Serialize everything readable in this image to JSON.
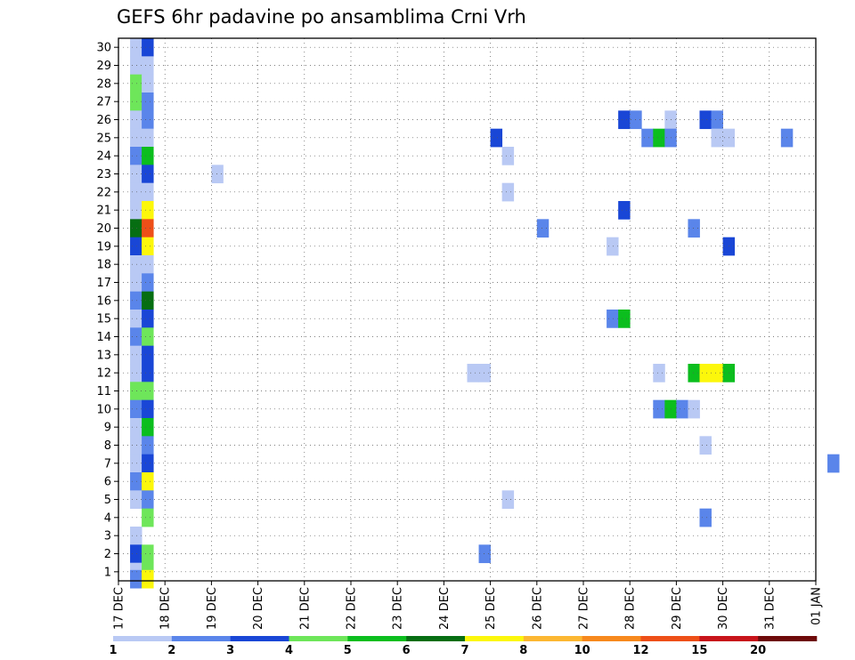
{
  "chart_data": {
    "type": "heatmap",
    "title": "GEFS 6hr padavine po ansamblima Crni Vrh",
    "xlabel": "",
    "ylabel": "",
    "x_ticks": [
      "17 DEC",
      "18 DEC",
      "19 DEC",
      "20 DEC",
      "21 DEC",
      "22 DEC",
      "23 DEC",
      "24 DEC",
      "25 DEC",
      "26 DEC",
      "27 DEC",
      "28 DEC",
      "29 DEC",
      "30 DEC",
      "31 DEC",
      "01 JAN"
    ],
    "xlim": [
      0,
      15
    ],
    "time_step_hours": 6,
    "y_ticks": [
      "1",
      "2",
      "3",
      "4",
      "5",
      "6",
      "7",
      "8",
      "9",
      "10",
      "11",
      "12",
      "13",
      "14",
      "15",
      "16",
      "17",
      "18",
      "19",
      "20",
      "21",
      "22",
      "23",
      "24",
      "25",
      "26",
      "27",
      "28",
      "29",
      "30"
    ],
    "ylim": [
      0.5,
      30.5
    ],
    "grid": true,
    "colorbar": {
      "position": "bottom",
      "labels": [
        "1",
        "2",
        "3",
        "4",
        "5",
        "6",
        "7",
        "8",
        "10",
        "12",
        "15",
        "20"
      ],
      "colors": [
        "#b9c9f4",
        "#5a85ea",
        "#1946d6",
        "#6ee65a",
        "#0bbe1e",
        "#066e12",
        "#fcf70b",
        "#fcb732",
        "#f7891d",
        "#ee4f18",
        "#c8141a",
        "#6e0a0a"
      ]
    },
    "cells": [
      {
        "member": 30,
        "day": 0.25,
        "value": 1.5
      },
      {
        "member": 30,
        "day": 0.5,
        "value": 3.5
      },
      {
        "member": 29,
        "day": 0.25,
        "value": 1.5
      },
      {
        "member": 29,
        "day": 0.5,
        "value": 1.5
      },
      {
        "member": 28,
        "day": 0.25,
        "value": 4.5
      },
      {
        "member": 28,
        "day": 0.5,
        "value": 1.5
      },
      {
        "member": 27,
        "day": 0.25,
        "value": 4.5
      },
      {
        "member": 27,
        "day": 0.5,
        "value": 2.5
      },
      {
        "member": 26,
        "day": 0.25,
        "value": 1.5
      },
      {
        "member": 26,
        "day": 0.5,
        "value": 2.5
      },
      {
        "member": 25,
        "day": 0.25,
        "value": 1.5
      },
      {
        "member": 25,
        "day": 0.5,
        "value": 1.5
      },
      {
        "member": 24,
        "day": 0.25,
        "value": 2.5
      },
      {
        "member": 24,
        "day": 0.5,
        "value": 5.5
      },
      {
        "member": 23,
        "day": 0.25,
        "value": 1.5
      },
      {
        "member": 23,
        "day": 0.5,
        "value": 3.5
      },
      {
        "member": 22,
        "day": 0.25,
        "value": 1.5
      },
      {
        "member": 22,
        "day": 0.5,
        "value": 1.5
      },
      {
        "member": 21,
        "day": 0.25,
        "value": 1.5
      },
      {
        "member": 21,
        "day": 0.5,
        "value": 7.5
      },
      {
        "member": 20,
        "day": 0.25,
        "value": 6.5
      },
      {
        "member": 20,
        "day": 0.5,
        "value": 13.5
      },
      {
        "member": 19,
        "day": 0.25,
        "value": 3.5
      },
      {
        "member": 19,
        "day": 0.5,
        "value": 7.5
      },
      {
        "member": 18,
        "day": 0.25,
        "value": 1.5
      },
      {
        "member": 18,
        "day": 0.5,
        "value": 1.5
      },
      {
        "member": 17,
        "day": 0.25,
        "value": 1.5
      },
      {
        "member": 17,
        "day": 0.5,
        "value": 2.5
      },
      {
        "member": 16,
        "day": 0.25,
        "value": 2.5
      },
      {
        "member": 16,
        "day": 0.5,
        "value": 6.5
      },
      {
        "member": 15,
        "day": 0.25,
        "value": 1.5
      },
      {
        "member": 15,
        "day": 0.5,
        "value": 3.5
      },
      {
        "member": 14,
        "day": 0.25,
        "value": 2.5
      },
      {
        "member": 14,
        "day": 0.5,
        "value": 4.5
      },
      {
        "member": 13,
        "day": 0.25,
        "value": 1.5
      },
      {
        "member": 13,
        "day": 0.5,
        "value": 3.5
      },
      {
        "member": 12,
        "day": 0.25,
        "value": 1.5
      },
      {
        "member": 12,
        "day": 0.5,
        "value": 3.5
      },
      {
        "member": 11,
        "day": 0.25,
        "value": 4.5
      },
      {
        "member": 11,
        "day": 0.5,
        "value": 4.5
      },
      {
        "member": 10,
        "day": 0.25,
        "value": 2.5
      },
      {
        "member": 10,
        "day": 0.5,
        "value": 3.5
      },
      {
        "member": 9,
        "day": 0.25,
        "value": 1.5
      },
      {
        "member": 9,
        "day": 0.5,
        "value": 5.5
      },
      {
        "member": 8,
        "day": 0.25,
        "value": 1.5
      },
      {
        "member": 8,
        "day": 0.5,
        "value": 2.5
      },
      {
        "member": 7,
        "day": 0.25,
        "value": 1.5
      },
      {
        "member": 7,
        "day": 0.5,
        "value": 3.5
      },
      {
        "member": 6,
        "day": 0.25,
        "value": 2.5
      },
      {
        "member": 6,
        "day": 0.5,
        "value": 7.5
      },
      {
        "member": 5,
        "day": 0.25,
        "value": 1.5
      },
      {
        "member": 5,
        "day": 0.5,
        "value": 2.5
      },
      {
        "member": 4,
        "day": 0.5,
        "value": 4.5
      },
      {
        "member": 3,
        "day": 0.25,
        "value": 1.5
      },
      {
        "member": 2,
        "day": 0.25,
        "value": 3.5
      },
      {
        "member": 2,
        "day": 0.5,
        "value": 4.5
      },
      {
        "member": 1,
        "day": 0.25,
        "value": 1.5
      },
      {
        "member": 1,
        "day": 0.5,
        "value": 4.5
      },
      {
        "member": 0.6,
        "day": 0.25,
        "value": 2.5
      },
      {
        "member": 0.6,
        "day": 0.5,
        "value": 7.5
      },
      {
        "member": 26,
        "day": 10.75,
        "value": 3.5
      },
      {
        "member": 26,
        "day": 11.0,
        "value": 2.5
      },
      {
        "member": 26,
        "day": 11.75,
        "value": 1.5
      },
      {
        "member": 26,
        "day": 12.5,
        "value": 3.5
      },
      {
        "member": 26,
        "day": 12.75,
        "value": 2.5
      },
      {
        "member": 25,
        "day": 8.0,
        "value": 3.5
      },
      {
        "member": 25,
        "day": 11.25,
        "value": 2.5
      },
      {
        "member": 25,
        "day": 11.5,
        "value": 5.5
      },
      {
        "member": 25,
        "day": 11.75,
        "value": 2.5
      },
      {
        "member": 25,
        "day": 12.75,
        "value": 1.5
      },
      {
        "member": 25,
        "day": 13.0,
        "value": 1.5
      },
      {
        "member": 25,
        "day": 14.25,
        "value": 2.5
      },
      {
        "member": 24,
        "day": 8.25,
        "value": 1.5
      },
      {
        "member": 23,
        "day": 2.0,
        "value": 1.5
      },
      {
        "member": 22,
        "day": 8.25,
        "value": 1.5
      },
      {
        "member": 21,
        "day": 10.75,
        "value": 3.5
      },
      {
        "member": 20,
        "day": 9.0,
        "value": 2.5
      },
      {
        "member": 20,
        "day": 12.25,
        "value": 2.5
      },
      {
        "member": 19,
        "day": 10.5,
        "value": 1.5
      },
      {
        "member": 19,
        "day": 13.0,
        "value": 3.5
      },
      {
        "member": 15,
        "day": 10.5,
        "value": 2.5
      },
      {
        "member": 15,
        "day": 10.75,
        "value": 5.5
      },
      {
        "member": 12,
        "day": 7.5,
        "value": 1.5
      },
      {
        "member": 12,
        "day": 7.75,
        "value": 1.5
      },
      {
        "member": 12,
        "day": 11.5,
        "value": 1.5
      },
      {
        "member": 12,
        "day": 12.25,
        "value": 5.5
      },
      {
        "member": 12,
        "day": 12.5,
        "value": 7.5
      },
      {
        "member": 12,
        "day": 12.75,
        "value": 7.5
      },
      {
        "member": 12,
        "day": 13.0,
        "value": 5.5
      },
      {
        "member": 10,
        "day": 11.5,
        "value": 2.5
      },
      {
        "member": 10,
        "day": 11.75,
        "value": 5.5
      },
      {
        "member": 10,
        "day": 12.0,
        "value": 2.5
      },
      {
        "member": 10,
        "day": 12.25,
        "value": 1.5
      },
      {
        "member": 8,
        "day": 12.5,
        "value": 1.5
      },
      {
        "member": 7,
        "day": 15.25,
        "value": 2.5
      },
      {
        "member": 5,
        "day": 8.25,
        "value": 1.5
      },
      {
        "member": 4,
        "day": 12.5,
        "value": 2.5
      },
      {
        "member": 2,
        "day": 7.75,
        "value": 2.5
      }
    ]
  }
}
